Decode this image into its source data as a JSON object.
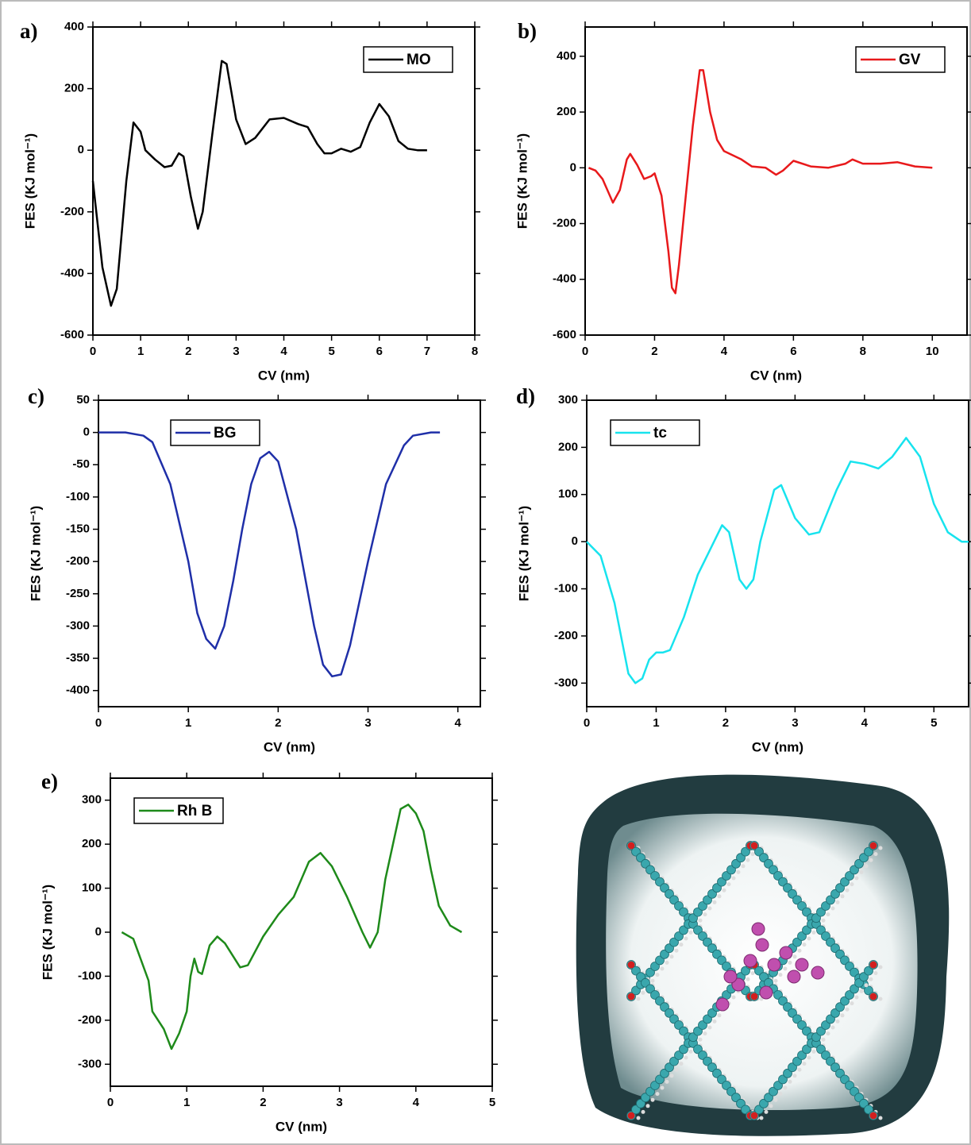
{
  "chart_data": [
    {
      "type": "line",
      "panel_label": "a)",
      "xlabel": "CV (nm)",
      "ylabel": "FES (KJ mol⁻¹)",
      "x": [
        0,
        0.2,
        0.38,
        0.5,
        0.7,
        0.85,
        1.0,
        1.1,
        1.3,
        1.5,
        1.65,
        1.8,
        1.9,
        2.05,
        2.2,
        2.3,
        2.5,
        2.7,
        2.8,
        3.0,
        3.2,
        3.4,
        3.7,
        4.0,
        4.3,
        4.5,
        4.7,
        4.85,
        5.0,
        5.2,
        5.4,
        5.6,
        5.8,
        6.0,
        6.2,
        6.4,
        6.6,
        6.8,
        7.0
      ],
      "series": [
        {
          "name": "MO",
          "color": "#000000",
          "values": [
            -100,
            -380,
            -505,
            -450,
            -100,
            90,
            60,
            0,
            -30,
            -55,
            -50,
            -10,
            -20,
            -150,
            -255,
            -200,
            50,
            290,
            280,
            100,
            20,
            40,
            100,
            105,
            85,
            75,
            20,
            -10,
            -10,
            5,
            -5,
            10,
            90,
            150,
            110,
            30,
            5,
            0,
            0
          ]
        }
      ],
      "xlim": [
        0,
        8
      ],
      "xticks": [
        0,
        1,
        2,
        3,
        4,
        5,
        6,
        7,
        8
      ],
      "ylim": [
        -600,
        400
      ],
      "yticks": [
        -600,
        -400,
        -200,
        0,
        200,
        400
      ],
      "legend": "upper right"
    },
    {
      "type": "line",
      "panel_label": "b)",
      "xlabel": "CV (nm)",
      "ylabel": "FES (KJ mol⁻¹)",
      "x": [
        0.1,
        0.3,
        0.5,
        0.8,
        1.0,
        1.2,
        1.3,
        1.5,
        1.7,
        1.9,
        2.0,
        2.2,
        2.4,
        2.5,
        2.6,
        2.7,
        2.9,
        3.1,
        3.3,
        3.4,
        3.6,
        3.8,
        4.0,
        4.5,
        4.8,
        5.2,
        5.5,
        5.7,
        6.0,
        6.5,
        7.0,
        7.5,
        7.7,
        8.0,
        8.5,
        9.0,
        9.5,
        10
      ],
      "series": [
        {
          "name": "GV",
          "color": "#e8191b",
          "values": [
            0,
            -10,
            -40,
            -125,
            -80,
            30,
            50,
            10,
            -40,
            -30,
            -20,
            -100,
            -300,
            -430,
            -450,
            -350,
            -100,
            150,
            350,
            350,
            200,
            100,
            60,
            30,
            5,
            0,
            -25,
            -10,
            25,
            5,
            0,
            15,
            30,
            15,
            15,
            20,
            5,
            0
          ]
        }
      ],
      "xlim": [
        0,
        11
      ],
      "xticks": [
        0,
        2,
        4,
        6,
        8,
        10
      ],
      "ylim": [
        -600,
        505
      ],
      "yticks": [
        -600,
        -400,
        -200,
        0,
        200,
        400
      ],
      "legend": "upper right"
    },
    {
      "type": "line",
      "panel_label": "c)",
      "xlabel": "CV (nm)",
      "ylabel": "FES (KJ mol⁻¹)",
      "x": [
        0,
        0.3,
        0.5,
        0.6,
        0.8,
        1.0,
        1.1,
        1.2,
        1.3,
        1.4,
        1.5,
        1.6,
        1.7,
        1.8,
        1.9,
        2.0,
        2.2,
        2.4,
        2.5,
        2.6,
        2.7,
        2.8,
        3.0,
        3.2,
        3.4,
        3.5,
        3.7,
        3.8
      ],
      "series": [
        {
          "name": "BG",
          "color": "#1f2fa8",
          "values": [
            0,
            0,
            -5,
            -15,
            -80,
            -200,
            -280,
            -320,
            -335,
            -300,
            -230,
            -150,
            -80,
            -40,
            -30,
            -45,
            -150,
            -300,
            -360,
            -378,
            -375,
            -330,
            -200,
            -80,
            -20,
            -5,
            0,
            0
          ]
        }
      ],
      "xlim": [
        0,
        4.25
      ],
      "xticks": [
        0,
        1,
        2,
        3,
        4
      ],
      "ylim": [
        -425,
        50
      ],
      "yticks": [
        -400,
        -350,
        -300,
        -250,
        -200,
        -150,
        -100,
        -50,
        0,
        50
      ],
      "legend": "upper left"
    },
    {
      "type": "line",
      "panel_label": "d)",
      "xlabel": "CV (nm)",
      "ylabel": "FES (KJ mol⁻¹)",
      "x": [
        0,
        0.2,
        0.4,
        0.6,
        0.7,
        0.8,
        0.9,
        1.0,
        1.1,
        1.2,
        1.4,
        1.6,
        1.8,
        1.95,
        2.05,
        2.2,
        2.3,
        2.4,
        2.5,
        2.7,
        2.8,
        3.0,
        3.2,
        3.35,
        3.6,
        3.8,
        4.0,
        4.2,
        4.4,
        4.6,
        4.8,
        5.0,
        5.2,
        5.4,
        5.5
      ],
      "series": [
        {
          "name": "tc",
          "color": "#17e3ee",
          "values": [
            0,
            -30,
            -130,
            -280,
            -300,
            -290,
            -250,
            -235,
            -235,
            -230,
            -160,
            -70,
            -10,
            35,
            20,
            -80,
            -100,
            -80,
            0,
            110,
            120,
            50,
            15,
            20,
            110,
            170,
            165,
            155,
            180,
            220,
            180,
            80,
            20,
            0,
            0
          ]
        }
      ],
      "xlim": [
        0,
        5.5
      ],
      "xticks": [
        0,
        1,
        2,
        3,
        4,
        5
      ],
      "ylim": [
        -350,
        300
      ],
      "yticks": [
        -300,
        -200,
        -100,
        0,
        100,
        200,
        300
      ],
      "legend": "upper left"
    },
    {
      "type": "line",
      "panel_label": "e)",
      "xlabel": "CV (nm)",
      "ylabel": "FES (KJ mol⁻¹)",
      "x": [
        0.15,
        0.3,
        0.5,
        0.55,
        0.7,
        0.8,
        0.9,
        1.0,
        1.05,
        1.1,
        1.15,
        1.2,
        1.3,
        1.4,
        1.5,
        1.7,
        1.8,
        2.0,
        2.2,
        2.4,
        2.6,
        2.75,
        2.9,
        3.1,
        3.3,
        3.4,
        3.5,
        3.6,
        3.8,
        3.9,
        4.0,
        4.1,
        4.2,
        4.3,
        4.45,
        4.6
      ],
      "series": [
        {
          "name": "Rh B",
          "color": "#1e8a1a",
          "values": [
            0,
            -15,
            -110,
            -180,
            -220,
            -265,
            -230,
            -180,
            -100,
            -60,
            -90,
            -95,
            -30,
            -10,
            -25,
            -80,
            -75,
            -10,
            40,
            80,
            160,
            180,
            150,
            80,
            0,
            -35,
            0,
            120,
            280,
            290,
            270,
            230,
            140,
            60,
            15,
            0
          ]
        }
      ],
      "xlim": [
        0,
        5
      ],
      "xticks": [
        0,
        1,
        2,
        3,
        4,
        5
      ],
      "ylim": [
        -350,
        350
      ],
      "yticks": [
        -300,
        -200,
        -100,
        0,
        100,
        200,
        300
      ],
      "legend": "upper left"
    }
  ]
}
